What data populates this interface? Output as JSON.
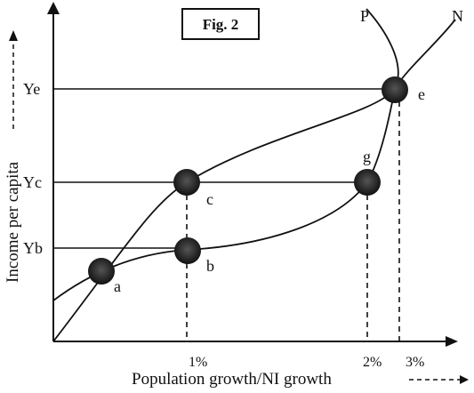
{
  "figure": {
    "label": "Fig. 2"
  },
  "axes": {
    "x_title": "Population growth/NI growth",
    "y_title": "Income per capita"
  },
  "y_ticks": {
    "ye": "Ye",
    "yc": "Yc",
    "yb": "Yb"
  },
  "x_ticks": {
    "one": "1%",
    "two": "2%",
    "three": "3%"
  },
  "curves": {
    "p": "P",
    "n": "N"
  },
  "points": {
    "a": "a",
    "b": "b",
    "c": "c",
    "e": "e",
    "g": "g"
  }
}
